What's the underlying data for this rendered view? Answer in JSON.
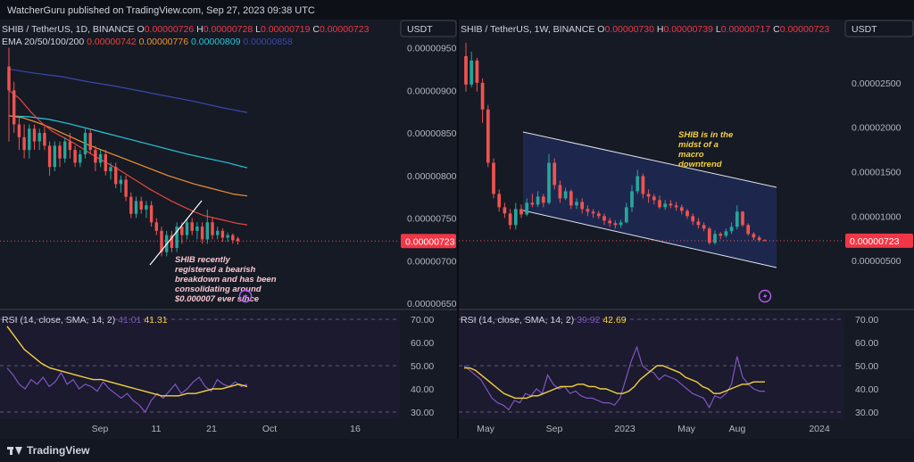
{
  "header": {
    "published": "WatcherGuru published on TradingView.com, Sep 27, 2023 09:38 UTC"
  },
  "footer": {
    "brand": "TradingView"
  },
  "colors": {
    "up": "#26a69a",
    "down": "#ef5350",
    "ema20": "#e8453c",
    "ema50": "#f2922f",
    "ema100": "#26c6da",
    "ema200": "#3949ab",
    "rsi": "#7e57c2",
    "rsi_ma": "#f4d03f"
  },
  "chart_data": [
    {
      "type": "candlestick",
      "symbol": "SHIB / TetherUS, 1D, BINANCE",
      "ohlc": {
        "O": "0.00000726",
        "H": "0.00000728",
        "L": "0.00000719",
        "C": "0.00000723"
      },
      "ema_label": "EMA 20/50/100/200",
      "ema_values": [
        "0.00000742",
        "0.00000776",
        "0.00000809",
        "0.00000858"
      ],
      "currency": "USDT",
      "last_price": "0.00000723",
      "y_ticks": [
        "0.00000950",
        "0.00000900",
        "0.00000850",
        "0.00000800",
        "0.00000750",
        "0.00000700",
        "0.00000650"
      ],
      "x_ticks": [
        "Sep",
        "11",
        "21",
        "Oct",
        "16"
      ],
      "annotation": "SHIB recently registered a bearish breakdown and has been consolidating around $0.000007 ever since",
      "ylim": [
        6.5e-06,
        9.6e-06
      ],
      "candles": [
        [
          9.28,
          9.0,
          9.5,
          8.4
        ],
        [
          9.0,
          8.6,
          9.1,
          8.5
        ],
        [
          8.6,
          8.45,
          8.7,
          8.3
        ],
        [
          8.45,
          8.3,
          8.6,
          8.2
        ],
        [
          8.3,
          8.55,
          8.6,
          8.2
        ],
        [
          8.55,
          8.4,
          8.6,
          8.3
        ],
        [
          8.4,
          8.5,
          8.55,
          8.3
        ],
        [
          8.5,
          8.35,
          8.6,
          8.3
        ],
        [
          8.35,
          8.1,
          8.4,
          8.0
        ],
        [
          8.1,
          8.35,
          8.4,
          8.05
        ],
        [
          8.35,
          8.2,
          8.4,
          8.1
        ],
        [
          8.2,
          8.4,
          8.45,
          8.15
        ],
        [
          8.4,
          8.3,
          8.5,
          8.2
        ],
        [
          8.3,
          8.15,
          8.35,
          8.1
        ],
        [
          8.15,
          8.25,
          8.3,
          8.1
        ],
        [
          8.25,
          8.5,
          8.55,
          8.2
        ],
        [
          8.5,
          8.3,
          8.55,
          8.25
        ],
        [
          8.3,
          8.15,
          8.35,
          8.05
        ],
        [
          8.15,
          8.25,
          8.3,
          8.1
        ],
        [
          8.25,
          8.05,
          8.3,
          8.0
        ],
        [
          8.05,
          8.1,
          8.15,
          7.95
        ],
        [
          8.1,
          7.9,
          8.15,
          7.85
        ],
        [
          7.9,
          7.95,
          8.0,
          7.8
        ],
        [
          7.95,
          7.75,
          8.0,
          7.7
        ],
        [
          7.75,
          7.55,
          7.8,
          7.5
        ],
        [
          7.55,
          7.7,
          7.75,
          7.5
        ],
        [
          7.7,
          7.6,
          7.75,
          7.55
        ],
        [
          7.6,
          7.65,
          7.7,
          7.5
        ],
        [
          7.65,
          7.45,
          7.7,
          7.4
        ],
        [
          7.45,
          7.35,
          7.5,
          7.3
        ],
        [
          7.35,
          7.1,
          7.4,
          7.05
        ],
        [
          7.1,
          7.3,
          7.35,
          7.05
        ],
        [
          7.3,
          7.15,
          7.35,
          7.1
        ],
        [
          7.15,
          7.4,
          7.45,
          7.1
        ],
        [
          7.4,
          7.3,
          7.45,
          7.2
        ],
        [
          7.3,
          7.45,
          7.5,
          7.25
        ],
        [
          7.45,
          7.35,
          7.5,
          7.3
        ],
        [
          7.35,
          7.4,
          7.45,
          7.25
        ],
        [
          7.4,
          7.25,
          7.45,
          7.2
        ],
        [
          7.25,
          7.45,
          7.6,
          7.2
        ],
        [
          7.45,
          7.3,
          7.5,
          7.25
        ],
        [
          7.3,
          7.35,
          7.4,
          7.25
        ],
        [
          7.35,
          7.27,
          7.38,
          7.22
        ],
        [
          7.27,
          7.3,
          7.33,
          7.22
        ],
        [
          7.3,
          7.24,
          7.32,
          7.2
        ],
        [
          7.26,
          7.23,
          7.28,
          7.19
        ]
      ],
      "ema": {
        "ema20": [
          9.0,
          8.9,
          8.75,
          8.62,
          8.52,
          8.45,
          8.38,
          8.3,
          8.22,
          8.15,
          8.08,
          8.0,
          7.92,
          7.84,
          7.77,
          7.7,
          7.64,
          7.58,
          7.53,
          7.5,
          7.47,
          7.44,
          7.42
        ],
        "ema50": [
          8.7,
          8.68,
          8.63,
          8.57,
          8.5,
          8.43,
          8.36,
          8.3,
          8.24,
          8.18,
          8.12,
          8.06,
          8.0,
          7.95,
          7.9,
          7.86,
          7.82,
          7.78,
          7.76
        ],
        "ema100": [
          8.7,
          8.69,
          8.66,
          8.61,
          8.55,
          8.49,
          8.43,
          8.37,
          8.31,
          8.25,
          8.2,
          8.15,
          8.09
        ],
        "ema200": [
          9.25,
          9.2,
          9.16,
          9.1,
          9.05,
          8.99,
          8.93,
          8.87,
          8.8,
          8.74
        ]
      },
      "rsi_label": "RSI (14, close, SMA, 14, 2)",
      "rsi_values": [
        "41.01",
        "41.31"
      ],
      "rsi_ticks": [
        "70.00",
        "60.00",
        "50.00",
        "40.00",
        "30.00"
      ],
      "rsi": [
        49,
        46,
        42,
        40,
        44,
        42,
        45,
        41,
        43,
        47,
        42,
        44,
        40,
        42,
        41,
        39,
        43,
        40,
        38,
        36,
        38,
        35,
        33,
        30,
        35,
        38,
        36,
        39,
        42,
        38,
        40,
        43,
        45,
        41,
        39,
        44,
        42,
        41,
        43,
        41,
        42
      ],
      "rsi_ma": [
        67,
        62,
        57,
        54,
        51,
        49,
        48,
        47,
        46,
        45,
        44,
        44,
        43,
        42,
        41,
        40,
        39,
        38,
        37,
        37,
        37,
        38,
        38,
        39,
        40,
        40,
        41,
        42,
        41
      ]
    },
    {
      "type": "candlestick",
      "symbol": "SHIB / TetherUS, 1W, BINANCE",
      "ohlc": {
        "O": "0.00000730",
        "H": "0.00000739",
        "L": "0.00000717",
        "C": "0.00000723"
      },
      "currency": "USDT",
      "last_price": "0.00000723",
      "y_ticks": [
        "0.00002500",
        "0.00002000",
        "0.00001500",
        "0.00001000",
        "0.00000500"
      ],
      "x_ticks": [
        "May",
        "Sep",
        "2023",
        "May",
        "Aug",
        "2024"
      ],
      "annotation": "SHIB is in the midst of a macro downtrend",
      "ylim": [
        2e-07,
        2.99e-05
      ],
      "candles": [
        [
          28.0,
          24.8,
          29.5,
          24.0
        ],
        [
          24.8,
          27.5,
          28.5,
          24.5
        ],
        [
          27.5,
          25.0,
          27.8,
          24.0
        ],
        [
          25.0,
          22.0,
          25.5,
          20.5
        ],
        [
          22.0,
          16.0,
          22.5,
          15.5
        ],
        [
          16.0,
          12.5,
          16.5,
          12.0
        ],
        [
          12.5,
          11.0,
          13.0,
          10.5
        ],
        [
          11.0,
          10.3,
          11.5,
          9.8
        ],
        [
          10.3,
          9.0,
          10.8,
          8.5
        ],
        [
          9.0,
          10.8,
          11.5,
          8.5
        ],
        [
          10.8,
          10.2,
          11.3,
          9.8
        ],
        [
          10.2,
          11.5,
          12.0,
          10.0
        ],
        [
          11.5,
          11.3,
          12.5,
          11.0
        ],
        [
          11.3,
          12.2,
          12.8,
          11.0
        ],
        [
          12.2,
          11.5,
          12.5,
          11.0
        ],
        [
          11.5,
          16.0,
          17.0,
          11.3
        ],
        [
          16.0,
          13.5,
          16.5,
          13.0
        ],
        [
          13.5,
          12.0,
          14.0,
          11.5
        ],
        [
          12.0,
          12.8,
          13.2,
          11.8
        ],
        [
          12.8,
          11.2,
          13.0,
          10.8
        ],
        [
          11.2,
          11.6,
          12.0,
          10.8
        ],
        [
          11.6,
          10.8,
          12.0,
          10.3
        ],
        [
          10.8,
          10.5,
          11.2,
          10.0
        ],
        [
          10.5,
          10.3,
          10.8,
          9.8
        ],
        [
          10.3,
          10.0,
          10.6,
          9.7
        ],
        [
          10.0,
          9.5,
          10.3,
          9.0
        ],
        [
          9.5,
          9.2,
          9.8,
          8.8
        ],
        [
          9.2,
          9.0,
          9.5,
          8.6
        ],
        [
          9.0,
          9.3,
          9.6,
          8.7
        ],
        [
          9.3,
          11.0,
          11.5,
          9.2
        ],
        [
          11.0,
          12.8,
          13.5,
          10.5
        ],
        [
          12.8,
          14.5,
          15.2,
          12.5
        ],
        [
          14.5,
          12.5,
          14.8,
          12.0
        ],
        [
          12.5,
          12.2,
          13.0,
          11.5
        ],
        [
          12.2,
          11.8,
          12.5,
          11.3
        ],
        [
          11.8,
          11.0,
          12.3,
          10.8
        ],
        [
          11.0,
          11.4,
          11.8,
          10.7
        ],
        [
          11.4,
          11.2,
          11.8,
          10.9
        ],
        [
          11.2,
          11.0,
          11.6,
          10.6
        ],
        [
          11.0,
          10.6,
          11.3,
          10.2
        ],
        [
          10.6,
          10.0,
          10.8,
          9.7
        ],
        [
          10.0,
          9.4,
          10.3,
          9.0
        ],
        [
          9.4,
          9.0,
          9.8,
          8.6
        ],
        [
          9.0,
          8.6,
          9.3,
          8.3
        ],
        [
          8.6,
          7.0,
          8.8,
          6.8
        ],
        [
          7.0,
          8.0,
          8.4,
          6.8
        ],
        [
          8.0,
          7.8,
          8.2,
          7.4
        ],
        [
          7.8,
          8.3,
          8.6,
          7.6
        ],
        [
          8.3,
          8.8,
          9.3,
          8.0
        ],
        [
          8.8,
          10.5,
          11.2,
          8.5
        ],
        [
          10.5,
          9.0,
          10.6,
          8.8
        ],
        [
          9.0,
          8.0,
          9.2,
          7.8
        ],
        [
          8.0,
          7.6,
          8.2,
          7.3
        ],
        [
          7.6,
          7.3,
          7.8,
          7.1
        ],
        [
          7.3,
          7.23,
          7.4,
          7.17
        ]
      ],
      "rsi_label": "RSI (14, close, SMA, 14, 2)",
      "rsi_values": [
        "39.92",
        "42.69"
      ],
      "rsi_ticks": [
        "70.00",
        "60.00",
        "50.00",
        "40.00",
        "30.00"
      ],
      "rsi": [
        50,
        48,
        46,
        44,
        40,
        36,
        34,
        33,
        31,
        35,
        34,
        38,
        37,
        40,
        38,
        46,
        42,
        40,
        41,
        38,
        39,
        37,
        36,
        36,
        35,
        34,
        34,
        33,
        36,
        44,
        52,
        58,
        50,
        48,
        47,
        44,
        46,
        45,
        44,
        42,
        40,
        38,
        37,
        36,
        32,
        37,
        36,
        38,
        42,
        54,
        45,
        42,
        40,
        39,
        39
      ],
      "rsi_ma": [
        49,
        49,
        48,
        46,
        44,
        42,
        40,
        38,
        37,
        36,
        36,
        36,
        37,
        37,
        38,
        39,
        40,
        41,
        41,
        41,
        42,
        42,
        41,
        41,
        40,
        40,
        39,
        38,
        38,
        39,
        41,
        44,
        46,
        48,
        50,
        50,
        49,
        48,
        47,
        45,
        44,
        43,
        41,
        40,
        38,
        38,
        39,
        40,
        41,
        42,
        42,
        43,
        43,
        43
      ]
    }
  ]
}
